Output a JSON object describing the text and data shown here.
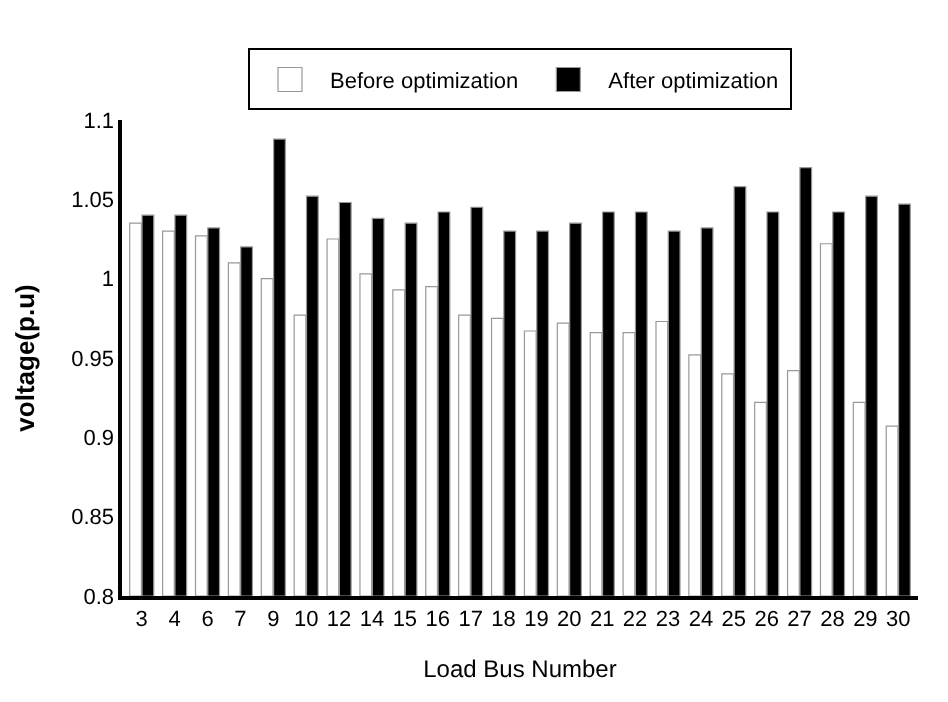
{
  "chart_data": {
    "type": "bar",
    "xlabel": "Load Bus Number",
    "ylabel": "voltage(p.u)",
    "categories": [
      "3",
      "4",
      "6",
      "7",
      "9",
      "10",
      "12",
      "14",
      "15",
      "16",
      "17",
      "18",
      "19",
      "20",
      "21",
      "22",
      "23",
      "24",
      "25",
      "26",
      "27",
      "28",
      "29",
      "30"
    ],
    "series": [
      {
        "name": "Before optimization",
        "color": "#ffffff",
        "values": [
          1.035,
          1.03,
          1.027,
          1.01,
          1.0,
          0.977,
          1.025,
          1.003,
          0.993,
          0.995,
          0.977,
          0.975,
          0.967,
          0.972,
          0.966,
          0.966,
          0.973,
          0.952,
          0.94,
          0.922,
          0.942,
          1.022,
          0.922,
          0.907
        ]
      },
      {
        "name": "After optimization",
        "color": "#000000",
        "values": [
          1.04,
          1.04,
          1.032,
          1.02,
          1.088,
          1.052,
          1.048,
          1.038,
          1.035,
          1.042,
          1.045,
          1.03,
          1.03,
          1.035,
          1.042,
          1.042,
          1.03,
          1.032,
          1.058,
          1.042,
          1.07,
          1.042,
          1.052,
          1.047
        ]
      }
    ],
    "ylim": [
      0.8,
      1.1
    ],
    "yticks": [
      0.8,
      0.85,
      0.9,
      0.95,
      1,
      1.05,
      1.1
    ],
    "legend": "top"
  }
}
